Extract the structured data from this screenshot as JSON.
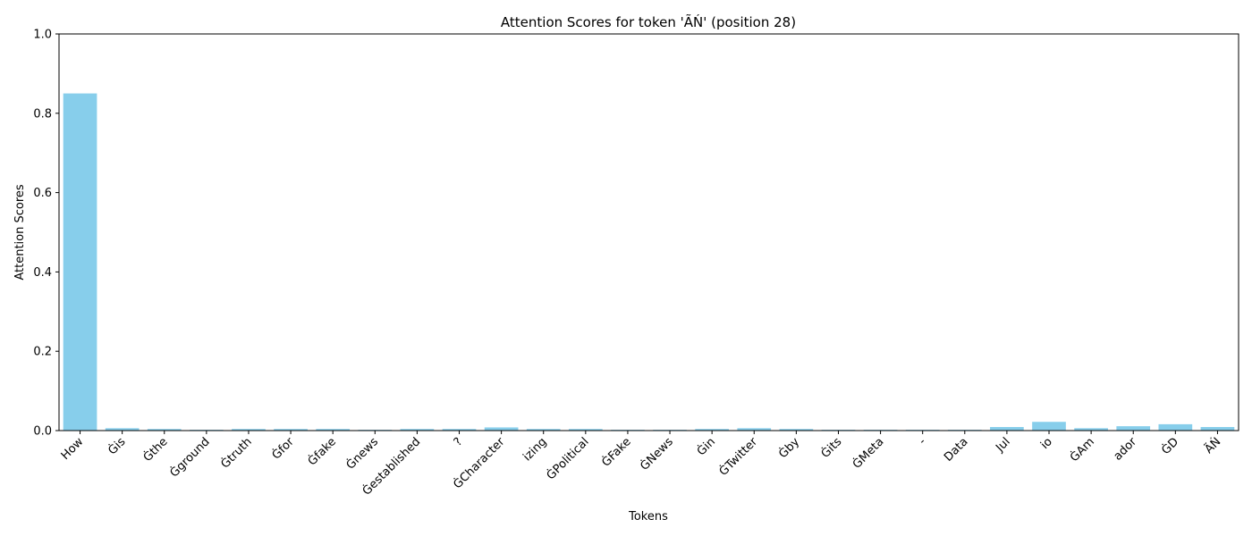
{
  "chart_data": {
    "type": "bar",
    "title": "Attention Scores for token 'ÃŃ' (position 28)",
    "xlabel": "Tokens",
    "ylabel": "Attention Scores",
    "ylim": [
      0,
      1
    ],
    "yticks": [
      "0.0",
      "0.2",
      "0.4",
      "0.6",
      "0.8",
      "1.0"
    ],
    "grid": false,
    "bar_color": "#87ceeb",
    "categories": [
      "How",
      "Ġis",
      "Ġthe",
      "Ġground",
      "Ġtruth",
      "Ġfor",
      "Ġfake",
      "Ġnews",
      "Ġestablished",
      "?",
      "ĠCharacter",
      "izing",
      "ĠPolitical",
      "ĠFake",
      "ĠNews",
      "Ġin",
      "ĠTwitter",
      "Ġby",
      "Ġits",
      "ĠMeta",
      "-",
      "Data",
      "Jul",
      "io",
      "ĠAm",
      "ador",
      "ĠD",
      "ÃŃ"
    ],
    "values": [
      0.85,
      0.006,
      0.004,
      0.002,
      0.004,
      0.004,
      0.004,
      0.002,
      0.004,
      0.004,
      0.008,
      0.004,
      0.004,
      0.002,
      0.002,
      0.004,
      0.006,
      0.004,
      0.002,
      0.002,
      0.002,
      0.002,
      0.009,
      0.022,
      0.006,
      0.011,
      0.016,
      0.009
    ]
  }
}
